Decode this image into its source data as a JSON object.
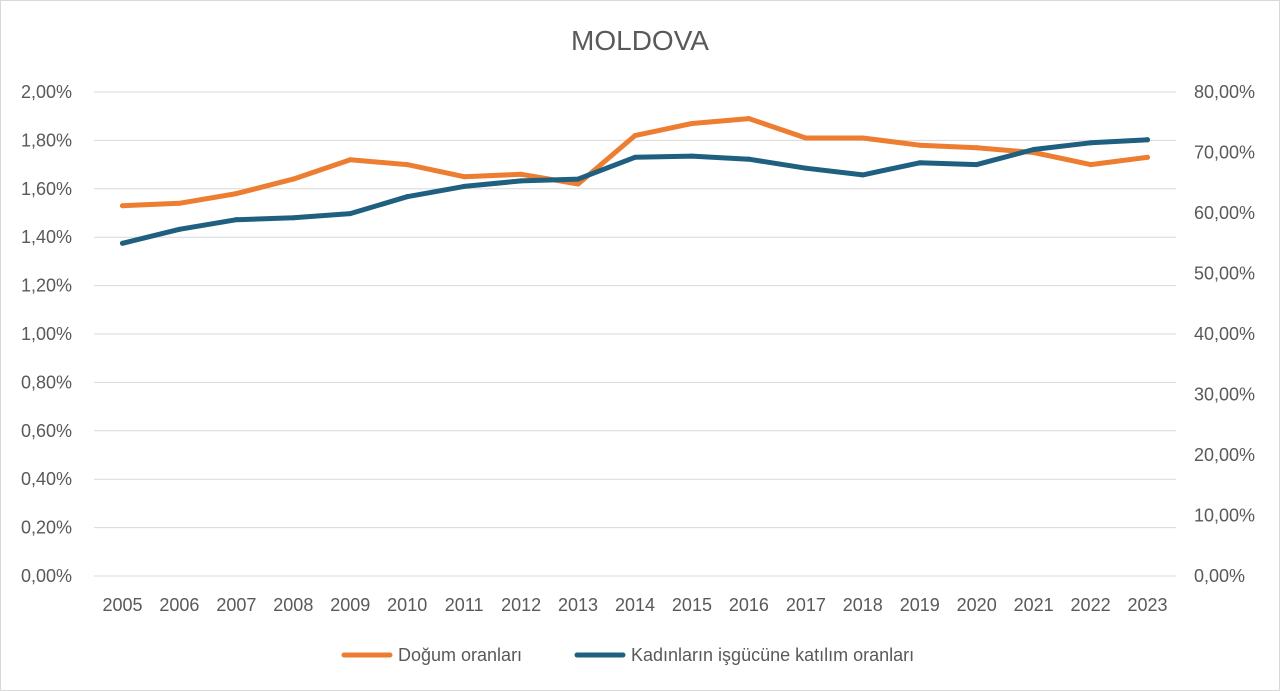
{
  "chart_data": {
    "type": "line",
    "title": "MOLDOVA",
    "categories": [
      "2005",
      "2006",
      "2007",
      "2008",
      "2009",
      "2010",
      "2011",
      "2012",
      "2013",
      "2014",
      "2015",
      "2016",
      "2017",
      "2018",
      "2019",
      "2020",
      "2021",
      "2022",
      "2023"
    ],
    "y_left": {
      "range": [
        0,
        2.0
      ],
      "ticks": [
        0,
        0.2,
        0.4,
        0.6,
        0.8,
        1.0,
        1.2,
        1.4,
        1.6,
        1.8,
        2.0
      ],
      "tick_labels": [
        "0,00%",
        "0,20%",
        "0,40%",
        "0,60%",
        "0,80%",
        "1,00%",
        "1,20%",
        "1,40%",
        "1,60%",
        "1,80%",
        "2,00%"
      ]
    },
    "y_right": {
      "range": [
        0,
        80
      ],
      "ticks": [
        0,
        10,
        20,
        30,
        40,
        50,
        60,
        70,
        80
      ],
      "tick_labels": [
        "0,00%",
        "10,00%",
        "20,00%",
        "30,00%",
        "40,00%",
        "50,00%",
        "60,00%",
        "70,00%",
        "80,00%"
      ]
    },
    "series": [
      {
        "name": "Doğum oranları",
        "axis": "left",
        "color": "#ed7d31",
        "values": [
          1.53,
          1.54,
          1.58,
          1.64,
          1.72,
          1.7,
          1.65,
          1.66,
          1.62,
          1.82,
          1.87,
          1.89,
          1.81,
          1.81,
          1.78,
          1.77,
          1.75,
          1.7,
          1.73
        ]
      },
      {
        "name": "Kadınların işgücüne katılım oranları",
        "axis": "right",
        "color": "#1f5f7f",
        "values": [
          55.0,
          57.3,
          58.9,
          59.2,
          59.9,
          62.7,
          64.4,
          65.3,
          65.6,
          69.2,
          69.4,
          68.9,
          67.4,
          66.3,
          68.3,
          68.0,
          70.5,
          71.6,
          72.1
        ]
      }
    ],
    "grid": true,
    "legend_position": "bottom"
  }
}
